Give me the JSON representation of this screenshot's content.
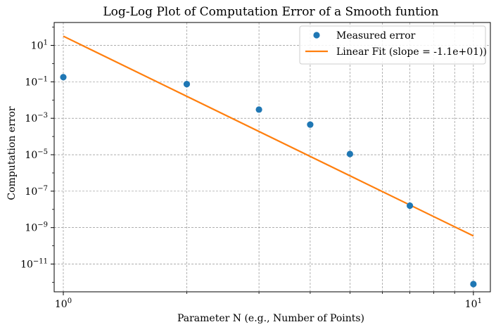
{
  "chart_data": {
    "type": "scatter",
    "title": "Log-Log Plot of Computation Error of a Smooth funtion",
    "xlabel": "Parameter N (e.g., Number of Points)",
    "ylabel": "Computation error",
    "xscale": "log",
    "yscale": "log",
    "xlim": [
      0.95,
      11.0
    ],
    "ylim": [
      3e-13,
      180
    ],
    "grid": true,
    "legend_position": "top-right",
    "x_major_ticks": [
      1,
      10
    ],
    "x_tick_labels": [
      {
        "base": "10",
        "exp": "0"
      },
      {
        "base": "10",
        "exp": "1"
      }
    ],
    "y_ticks": [
      1e-11,
      1e-09,
      1e-07,
      1e-05,
      0.001,
      0.1,
      10
    ],
    "y_tick_labels": [
      {
        "base": "10",
        "exp": "−11"
      },
      {
        "base": "10",
        "exp": "−9"
      },
      {
        "base": "10",
        "exp": "−7"
      },
      {
        "base": "10",
        "exp": "−5"
      },
      {
        "base": "10",
        "exp": "−3"
      },
      {
        "base": "10",
        "exp": "−1"
      },
      {
        "base": "10",
        "exp": "1"
      }
    ],
    "series": [
      {
        "name": "Measured error",
        "type": "scatter",
        "color": "#1f77b4",
        "x": [
          1,
          2,
          3,
          4,
          5,
          7,
          10
        ],
        "y": [
          0.18,
          0.075,
          0.003,
          0.00045,
          1.1e-05,
          1.6e-08,
          8e-13
        ]
      },
      {
        "name": "Linear Fit (slope = -1.1e+01))",
        "type": "line",
        "color": "#ff7f0e",
        "x": [
          1,
          10
        ],
        "y": [
          32,
          3.5e-10
        ]
      }
    ]
  }
}
